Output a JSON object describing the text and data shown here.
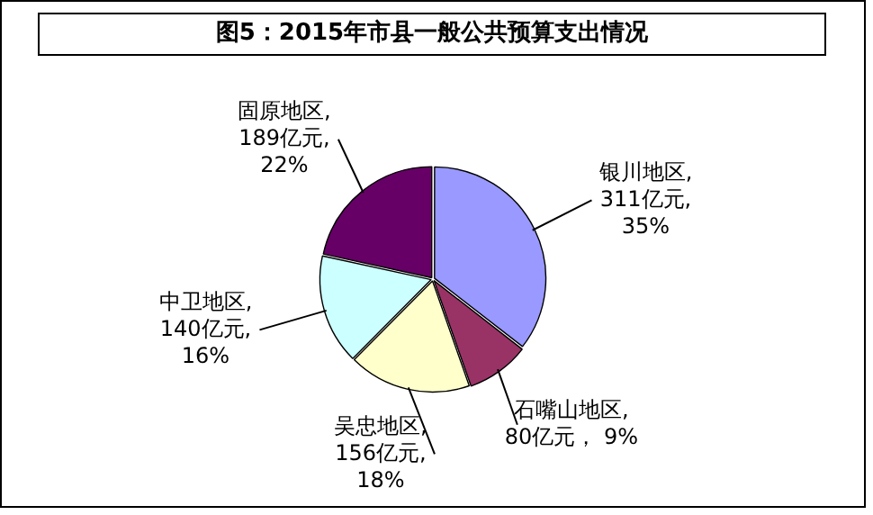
{
  "chart_data": {
    "type": "pie",
    "title": "图5：2015年市县一般公共预算支出情况",
    "categories": [
      "银川地区",
      "石嘴山地区",
      "吴忠地区",
      "中卫地区",
      "固原地区"
    ],
    "values": [
      311,
      80,
      156,
      140,
      189
    ],
    "colors": [
      "#9999ff",
      "#993366",
      "#ffffcc",
      "#ccffff",
      "#660066"
    ],
    "value_labels": [
      ",\n311亿元,\n35%",
      ",\n80亿元， 9%",
      ",\n156亿元,\n18%",
      ",\n140亿元,\n16%",
      ",\n189亿元,\n22%"
    ],
    "legend": false
  }
}
